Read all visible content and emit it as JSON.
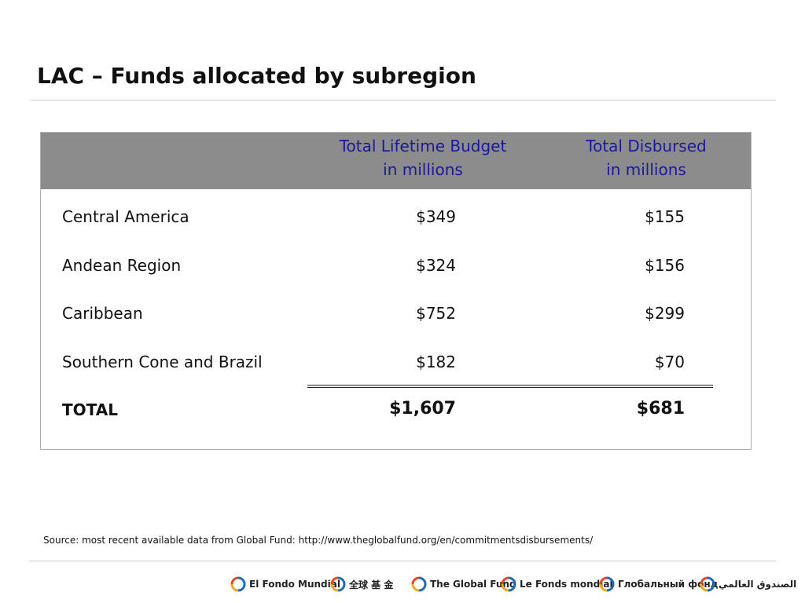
{
  "header": {
    "title": "LAC – Funds allocated by subregion"
  },
  "table": {
    "columns": [
      [
        "Total Lifetime Budget",
        "in millions"
      ],
      [
        "Total Disbursed",
        "in millions"
      ]
    ],
    "rows": [
      [
        "Central America",
        "$349",
        "$155"
      ],
      [
        "Andean Region",
        "$324",
        "$156"
      ],
      [
        "Caribbean",
        "$752",
        "$299"
      ],
      [
        "Southern Cone and Brazil",
        "$182",
        "$70"
      ]
    ],
    "total": [
      "TOTAL",
      "$1,607",
      "$681"
    ]
  },
  "source": "Source: most recent available data from Global Fund: http://www.theglobalfund.org/en/commitmentsdisbursements/",
  "footer": {
    "logos": [
      "El Fondo Mundial",
      "全球 基 金",
      "The Global Fund",
      "Le Fonds mondial",
      "Глобальный фонд",
      "الصندوق العالمي"
    ]
  }
}
